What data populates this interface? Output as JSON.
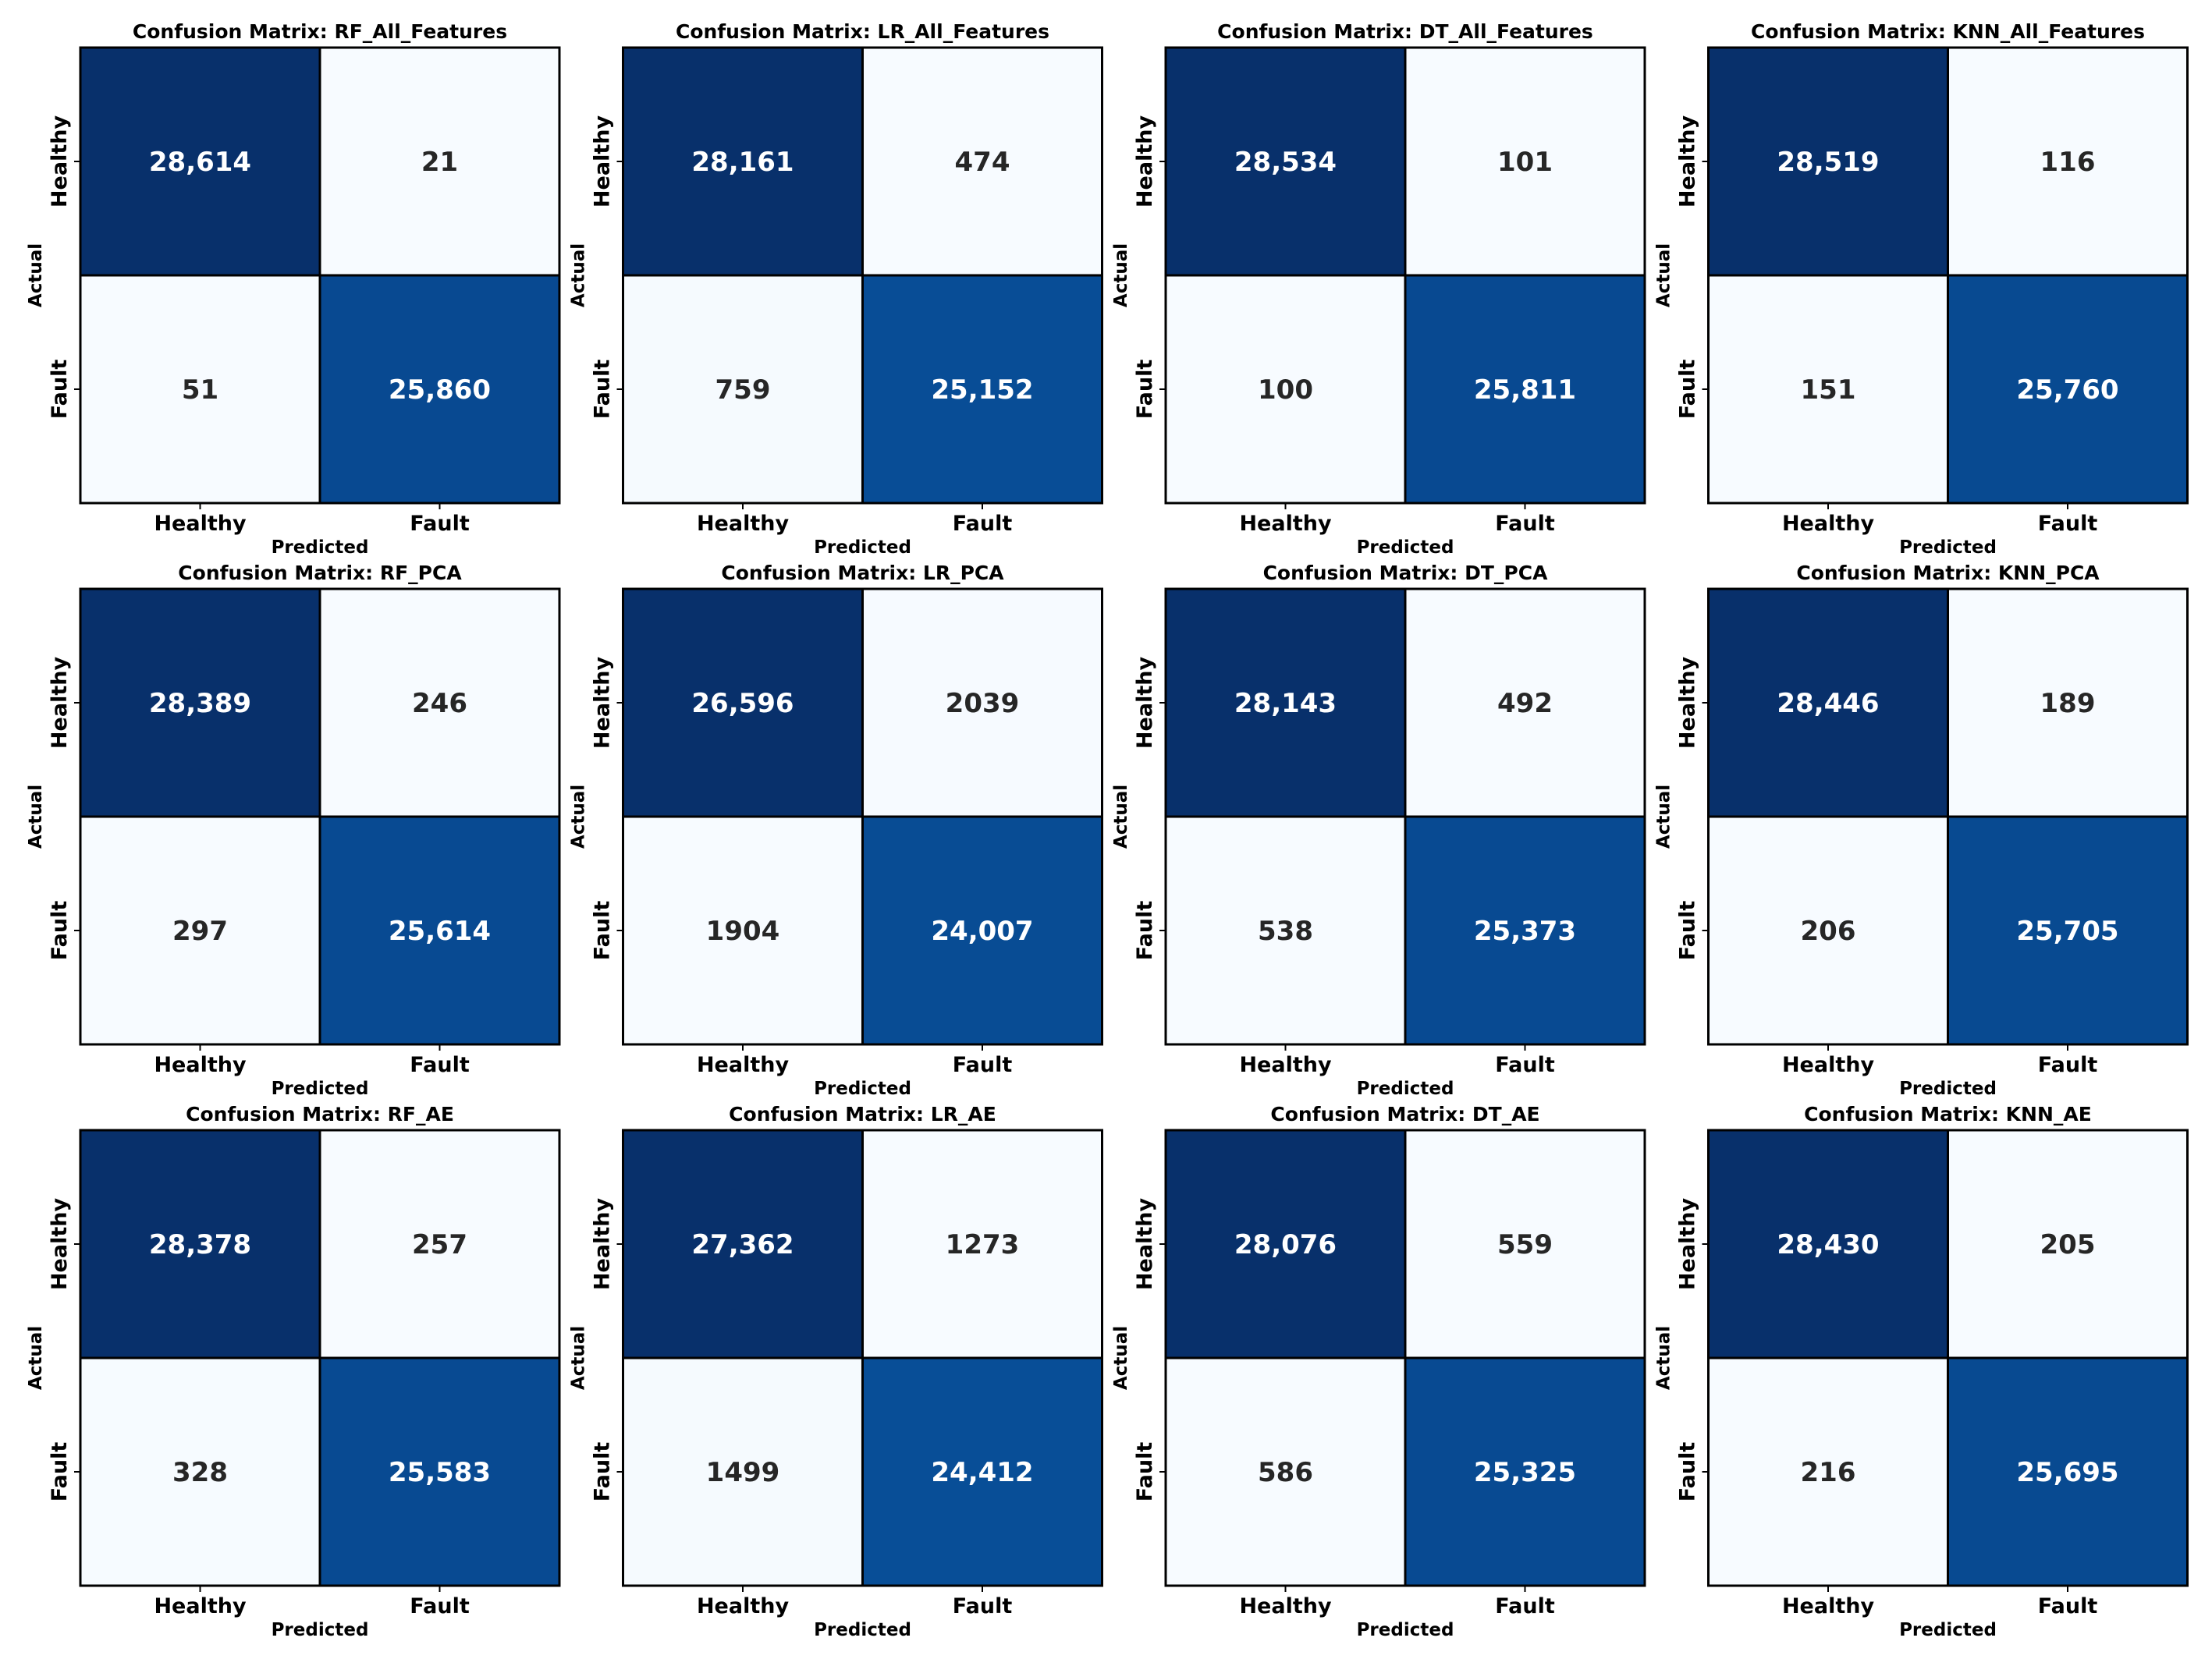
{
  "figure": {
    "rows": 3,
    "cols": 4
  },
  "chart_data": [
    {
      "type": "heatmap",
      "title": "Confusion Matrix: RF_All_Features",
      "xlabel": "Predicted",
      "ylabel": "Actual",
      "x_categories": [
        "Healthy",
        "Fault"
      ],
      "y_categories": [
        "Healthy",
        "Fault"
      ],
      "values": [
        [
          28614,
          21
        ],
        [
          51,
          25860
        ]
      ],
      "cell_labels": [
        [
          "28,614",
          "21"
        ],
        [
          "51",
          "25,860"
        ]
      ],
      "colormap": "Blues"
    },
    {
      "type": "heatmap",
      "title": "Confusion Matrix: LR_All_Features",
      "xlabel": "Predicted",
      "ylabel": "Actual",
      "x_categories": [
        "Healthy",
        "Fault"
      ],
      "y_categories": [
        "Healthy",
        "Fault"
      ],
      "values": [
        [
          28161,
          474
        ],
        [
          759,
          25152
        ]
      ],
      "cell_labels": [
        [
          "28,161",
          "474"
        ],
        [
          "759",
          "25,152"
        ]
      ],
      "colormap": "Blues"
    },
    {
      "type": "heatmap",
      "title": "Confusion Matrix: DT_All_Features",
      "xlabel": "Predicted",
      "ylabel": "Actual",
      "x_categories": [
        "Healthy",
        "Fault"
      ],
      "y_categories": [
        "Healthy",
        "Fault"
      ],
      "values": [
        [
          28534,
          101
        ],
        [
          100,
          25811
        ]
      ],
      "cell_labels": [
        [
          "28,534",
          "101"
        ],
        [
          "100",
          "25,811"
        ]
      ],
      "colormap": "Blues"
    },
    {
      "type": "heatmap",
      "title": "Confusion Matrix: KNN_All_Features",
      "xlabel": "Predicted",
      "ylabel": "Actual",
      "x_categories": [
        "Healthy",
        "Fault"
      ],
      "y_categories": [
        "Healthy",
        "Fault"
      ],
      "values": [
        [
          28519,
          116
        ],
        [
          151,
          25760
        ]
      ],
      "cell_labels": [
        [
          "28,519",
          "116"
        ],
        [
          "151",
          "25,760"
        ]
      ],
      "colormap": "Blues"
    },
    {
      "type": "heatmap",
      "title": "Confusion Matrix: RF_PCA",
      "xlabel": "Predicted",
      "ylabel": "Actual",
      "x_categories": [
        "Healthy",
        "Fault"
      ],
      "y_categories": [
        "Healthy",
        "Fault"
      ],
      "values": [
        [
          28389,
          246
        ],
        [
          297,
          25614
        ]
      ],
      "cell_labels": [
        [
          "28,389",
          "246"
        ],
        [
          "297",
          "25,614"
        ]
      ],
      "colormap": "Blues"
    },
    {
      "type": "heatmap",
      "title": "Confusion Matrix: LR_PCA",
      "xlabel": "Predicted",
      "ylabel": "Actual",
      "x_categories": [
        "Healthy",
        "Fault"
      ],
      "y_categories": [
        "Healthy",
        "Fault"
      ],
      "values": [
        [
          26596,
          2039
        ],
        [
          1904,
          24007
        ]
      ],
      "cell_labels": [
        [
          "26,596",
          "2039"
        ],
        [
          "1904",
          "24,007"
        ]
      ],
      "colormap": "Blues"
    },
    {
      "type": "heatmap",
      "title": "Confusion Matrix: DT_PCA",
      "xlabel": "Predicted",
      "ylabel": "Actual",
      "x_categories": [
        "Healthy",
        "Fault"
      ],
      "y_categories": [
        "Healthy",
        "Fault"
      ],
      "values": [
        [
          28143,
          492
        ],
        [
          538,
          25373
        ]
      ],
      "cell_labels": [
        [
          "28,143",
          "492"
        ],
        [
          "538",
          "25,373"
        ]
      ],
      "colormap": "Blues"
    },
    {
      "type": "heatmap",
      "title": "Confusion Matrix: KNN_PCA",
      "xlabel": "Predicted",
      "ylabel": "Actual",
      "x_categories": [
        "Healthy",
        "Fault"
      ],
      "y_categories": [
        "Healthy",
        "Fault"
      ],
      "values": [
        [
          28446,
          189
        ],
        [
          206,
          25705
        ]
      ],
      "cell_labels": [
        [
          "28,446",
          "189"
        ],
        [
          "206",
          "25,705"
        ]
      ],
      "colormap": "Blues"
    },
    {
      "type": "heatmap",
      "title": "Confusion Matrix: RF_AE",
      "xlabel": "Predicted",
      "ylabel": "Actual",
      "x_categories": [
        "Healthy",
        "Fault"
      ],
      "y_categories": [
        "Healthy",
        "Fault"
      ],
      "values": [
        [
          28378,
          257
        ],
        [
          328,
          25583
        ]
      ],
      "cell_labels": [
        [
          "28,378",
          "257"
        ],
        [
          "328",
          "25,583"
        ]
      ],
      "colormap": "Blues"
    },
    {
      "type": "heatmap",
      "title": "Confusion Matrix: LR_AE",
      "xlabel": "Predicted",
      "ylabel": "Actual",
      "x_categories": [
        "Healthy",
        "Fault"
      ],
      "y_categories": [
        "Healthy",
        "Fault"
      ],
      "values": [
        [
          27362,
          1273
        ],
        [
          1499,
          24412
        ]
      ],
      "cell_labels": [
        [
          "27,362",
          "1273"
        ],
        [
          "1499",
          "24,412"
        ]
      ],
      "colormap": "Blues"
    },
    {
      "type": "heatmap",
      "title": "Confusion Matrix: DT_AE",
      "xlabel": "Predicted",
      "ylabel": "Actual",
      "x_categories": [
        "Healthy",
        "Fault"
      ],
      "y_categories": [
        "Healthy",
        "Fault"
      ],
      "values": [
        [
          28076,
          559
        ],
        [
          586,
          25325
        ]
      ],
      "cell_labels": [
        [
          "28,076",
          "559"
        ],
        [
          "586",
          "25,325"
        ]
      ],
      "colormap": "Blues"
    },
    {
      "type": "heatmap",
      "title": "Confusion Matrix: KNN_AE",
      "xlabel": "Predicted",
      "ylabel": "Actual",
      "x_categories": [
        "Healthy",
        "Fault"
      ],
      "y_categories": [
        "Healthy",
        "Fault"
      ],
      "values": [
        [
          28430,
          205
        ],
        [
          216,
          25695
        ]
      ],
      "cell_labels": [
        [
          "28,430",
          "205"
        ],
        [
          "216",
          "25,695"
        ]
      ],
      "colormap": "Blues"
    }
  ]
}
